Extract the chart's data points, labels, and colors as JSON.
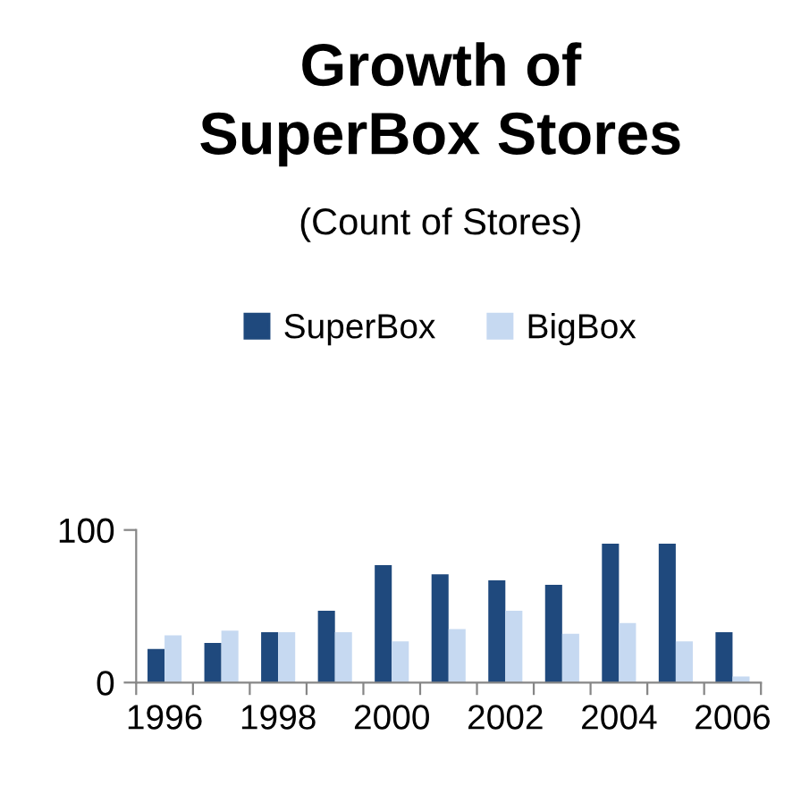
{
  "chart_data": {
    "type": "bar",
    "title": "Growth of\nSuperBox Stores",
    "subtitle": "(Count of Stores)",
    "categories": [
      "1996",
      null,
      "1998",
      null,
      "2000",
      null,
      "2002",
      null,
      "2004",
      null,
      "2006"
    ],
    "series": [
      {
        "name": "SuperBox",
        "color": "#1f497d",
        "values": [
          22,
          26,
          33,
          47,
          77,
          71,
          67,
          64,
          91,
          91,
          33
        ]
      },
      {
        "name": "BigBox",
        "color": "#c6d9f1",
        "values": [
          31,
          34,
          33,
          33,
          27,
          35,
          47,
          32,
          39,
          27,
          4
        ]
      }
    ],
    "ylim": [
      0,
      100
    ],
    "yticks": [
      0,
      100
    ],
    "grid": false,
    "legend": "top"
  }
}
